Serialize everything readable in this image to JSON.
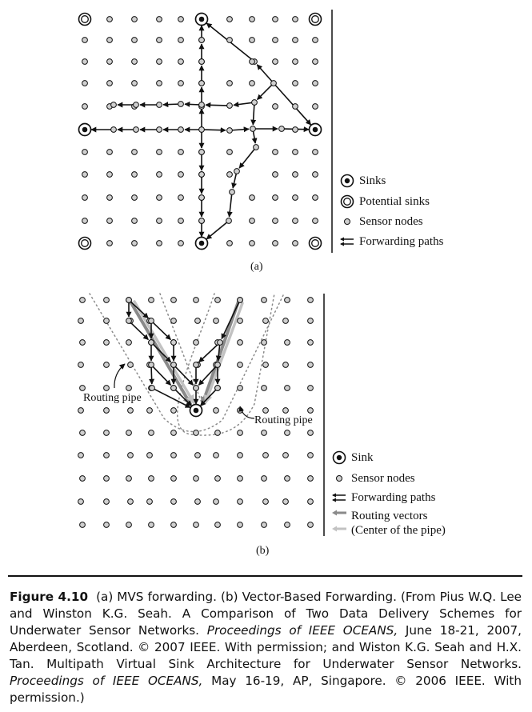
{
  "panel_a": {
    "label": "(a)",
    "legend": [
      {
        "icon": "sink-icon",
        "label": "Sinks"
      },
      {
        "icon": "potential-sink-icon",
        "label": "Potential sinks"
      },
      {
        "icon": "sensor-node-icon",
        "label": "Sensor nodes"
      },
      {
        "icon": "forwarding-arrows-icon",
        "label": "Forwarding paths"
      }
    ]
  },
  "panel_b": {
    "label": "(b)",
    "routing_pipe_left": "Routing pipe",
    "routing_pipe_right": "Routing pipe",
    "legend": [
      {
        "icon": "sink-icon",
        "label": "Sink"
      },
      {
        "icon": "sensor-node-icon",
        "label": "Sensor nodes"
      },
      {
        "icon": "forwarding-arrows-icon",
        "label": "Forwarding paths"
      },
      {
        "icon": "routing-vector-arrows-icon",
        "label": "Routing vectors"
      },
      {
        "icon": "",
        "label": "(Center of the pipe)"
      }
    ]
  },
  "caption": {
    "figure_number": "Figure 4.10",
    "text_1": "(a) MVS forwarding. (b) Vector-Based Forwarding. (From Pius W.Q. Lee and Winston K.G. Seah. A Comparison of Two Data Delivery Schemes for Underwater Sensor Networks. ",
    "italic_1": "Proceedings of IEEE OCEANS,",
    "text_2": " June 18-21, 2007, Aberdeen, Scotland. © 2007 IEEE. With permission; and Wiston K.G. Seah and H.X. Tan. Multipath Virtual Sink Architecture for Underwater Sensor Networks. ",
    "italic_2": "Proceedings of IEEE OCEANS,",
    "text_3": " May 16-19, AP, Singapore. © 2006 IEEE. With permission.)"
  },
  "colors": {
    "ink": "#111111",
    "node_fill": "#cfcfcf",
    "vector_dark": "#8a8a8a",
    "vector_light": "#c2c2c2"
  }
}
